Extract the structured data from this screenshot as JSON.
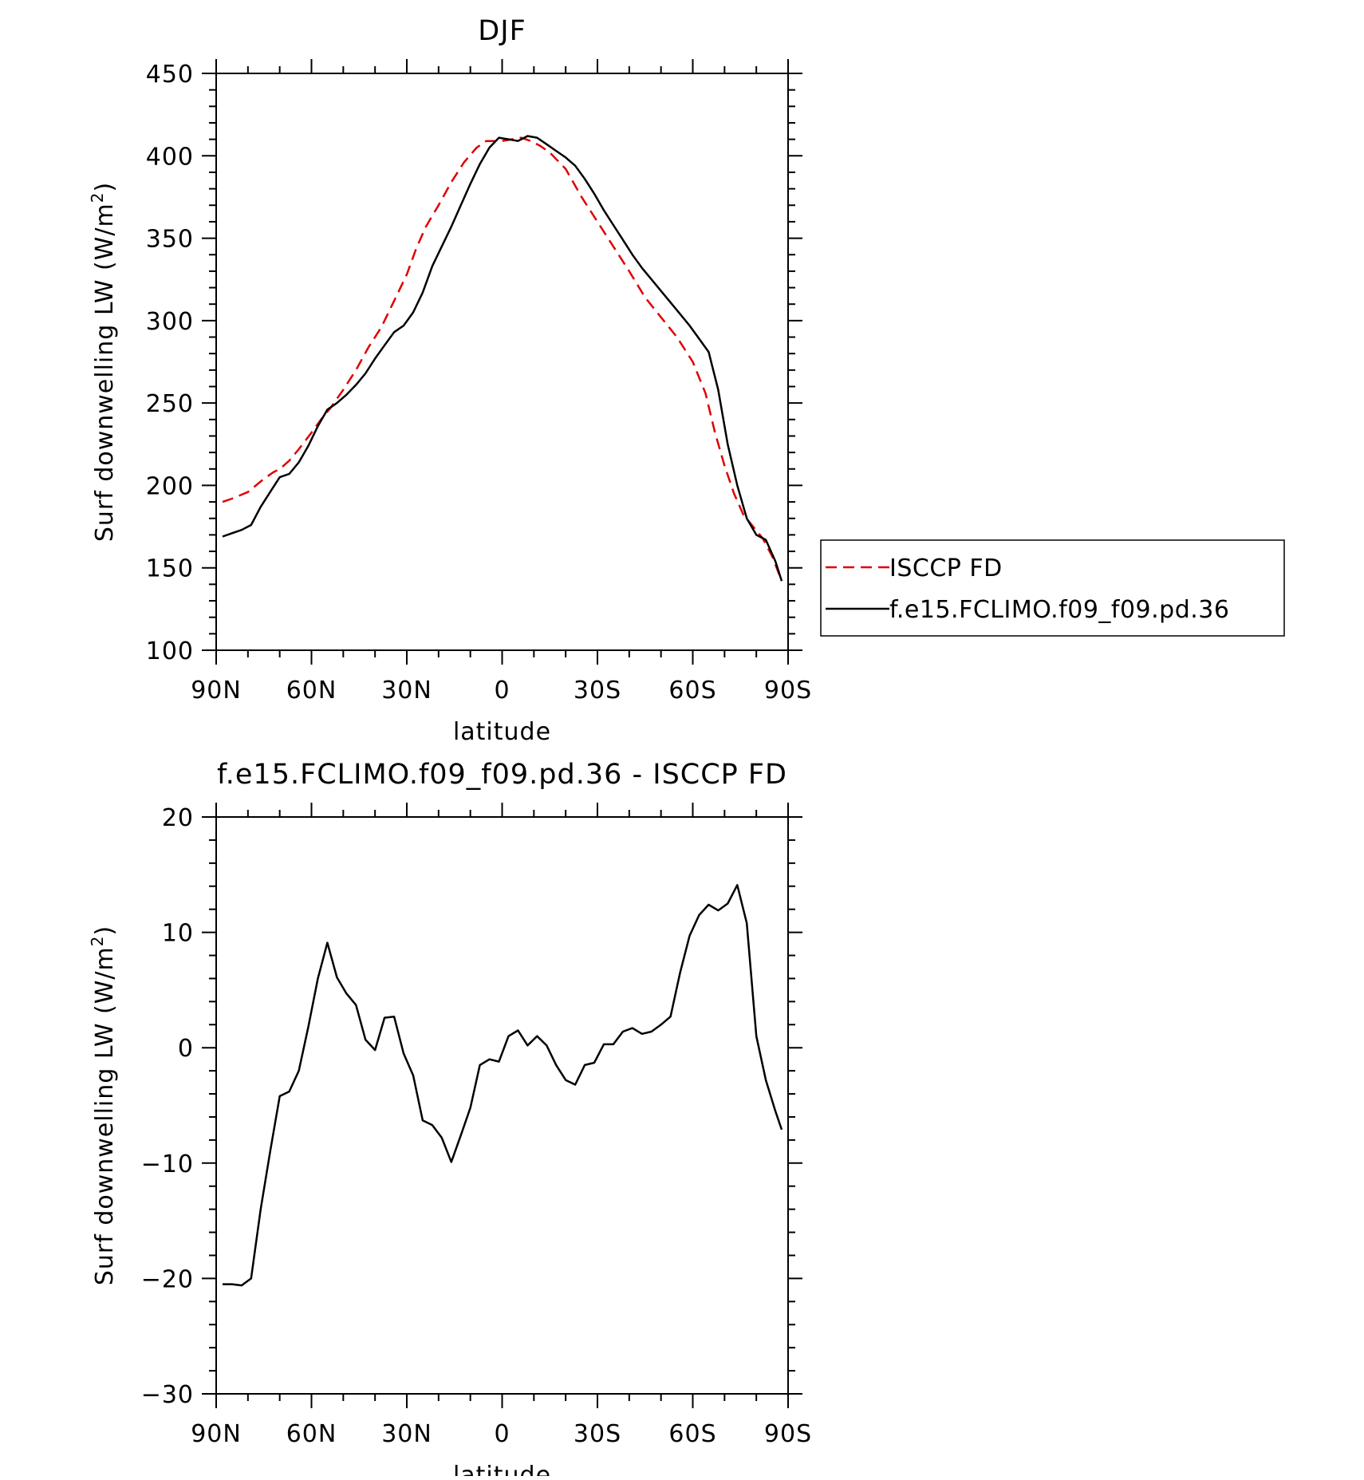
{
  "chart_data": [
    {
      "type": "line",
      "title": "DJF",
      "xlabel": "latitude",
      "ylabel": "Surf downwelling LW (W/m",
      "ylabel_sup": "2",
      "ylabel_end": ")",
      "ylim": [
        100,
        450
      ],
      "yticks": [
        100,
        150,
        200,
        250,
        300,
        350,
        400,
        450
      ],
      "xlim": [
        -90,
        90
      ],
      "xticks": [
        -90,
        -60,
        -30,
        0,
        30,
        60,
        90
      ],
      "xticklabels": [
        "90N",
        "60N",
        "30N",
        "0",
        "30S",
        "60S",
        "90S"
      ],
      "legend": "right",
      "series": [
        {
          "name": "ISCCP FD",
          "color": "#e00000",
          "dash": true,
          "x": [
            -88,
            -85,
            -80,
            -75,
            -72,
            -70,
            -67,
            -64,
            -60,
            -57,
            -54,
            -50,
            -46,
            -42,
            -38,
            -34,
            -30,
            -27,
            -24,
            -20,
            -16,
            -12,
            -8,
            -5,
            -2,
            0,
            3,
            6,
            9,
            12,
            15,
            20,
            25,
            30,
            35,
            40,
            45,
            50,
            55,
            60,
            64,
            67,
            70,
            73,
            76,
            79,
            82,
            85,
            88
          ],
          "y": [
            190,
            192,
            196,
            204,
            208,
            210,
            215,
            222,
            232,
            240,
            247,
            258,
            270,
            284,
            296,
            312,
            328,
            344,
            357,
            370,
            384,
            396,
            405,
            409,
            409,
            409,
            410,
            411,
            409,
            406,
            402,
            392,
            375,
            360,
            345,
            330,
            314,
            302,
            290,
            275,
            256,
            232,
            212,
            195,
            182,
            175,
            168,
            157,
            142
          ]
        },
        {
          "name": "f.e15.FCLIMO.f09_f09.pd.36",
          "color": "#000000",
          "dash": false,
          "x": [
            -88,
            -85,
            -82,
            -79,
            -76,
            -73,
            -70,
            -67,
            -64,
            -61,
            -58,
            -55,
            -52,
            -49,
            -46,
            -43,
            -40,
            -37,
            -34,
            -31,
            -28,
            -25,
            -22,
            -19,
            -16,
            -13,
            -10,
            -7,
            -4,
            -1,
            2,
            5,
            8,
            11,
            14,
            17,
            20,
            23,
            26,
            29,
            32,
            35,
            38,
            41,
            44,
            47,
            50,
            53,
            56,
            59,
            62,
            65,
            68,
            71,
            74,
            77,
            80,
            83,
            86,
            88
          ],
          "y": [
            169,
            171,
            173,
            176,
            187,
            196,
            205,
            207,
            214,
            224,
            236,
            246,
            250,
            255,
            261,
            268,
            277,
            285,
            293,
            297,
            305,
            317,
            333,
            345,
            357,
            370,
            383,
            395,
            405,
            411,
            410,
            409,
            412,
            411,
            407,
            403,
            399,
            394,
            386,
            377,
            367,
            358,
            349,
            340,
            332,
            325,
            318,
            311,
            304,
            297,
            289,
            281,
            258,
            225,
            200,
            180,
            170,
            167,
            154,
            142
          ]
        }
      ]
    },
    {
      "type": "line",
      "title": "f.e15.FCLIMO.f09_f09.pd.36 - ISCCP FD",
      "xlabel": "latitude",
      "ylabel": "Surf downwelling LW (W/m",
      "ylabel_sup": "2",
      "ylabel_end": ")",
      "ylim": [
        -30,
        20
      ],
      "yticks": [
        -30,
        -20,
        -10,
        0,
        10,
        20
      ],
      "yticklabels": [
        "−30",
        "−20",
        "−10",
        "0",
        "10",
        "20"
      ],
      "xlim": [
        -90,
        90
      ],
      "xticks": [
        -90,
        -60,
        -30,
        0,
        30,
        60,
        90
      ],
      "xticklabels": [
        "90N",
        "60N",
        "30N",
        "0",
        "30S",
        "60S",
        "90S"
      ],
      "series": [
        {
          "color": "#000000",
          "x": [
            -88,
            -85,
            -82,
            -79,
            -76,
            -73,
            -70,
            -67,
            -64,
            -61,
            -58,
            -55,
            -52,
            -49,
            -46,
            -43,
            -40,
            -37,
            -34,
            -31,
            -28,
            -25,
            -22,
            -19,
            -16,
            -13,
            -10,
            -7,
            -4,
            -1,
            2,
            5,
            8,
            11,
            14,
            17,
            20,
            23,
            26,
            29,
            32,
            35,
            38,
            41,
            44,
            47,
            50,
            53,
            56,
            59,
            62,
            65,
            68,
            71,
            74,
            77,
            80,
            83,
            86,
            88
          ],
          "y": [
            -20.5,
            -20.5,
            -20.6,
            -20.0,
            -14.0,
            -9.0,
            -4.2,
            -3.8,
            -2.0,
            1.8,
            6.0,
            9.1,
            6.1,
            4.7,
            3.7,
            0.7,
            -0.2,
            2.6,
            2.7,
            -0.5,
            -2.4,
            -6.3,
            -6.7,
            -7.8,
            -9.9,
            -7.6,
            -5.2,
            -1.5,
            -1.0,
            -1.2,
            1.0,
            1.5,
            0.2,
            1.0,
            0.2,
            -1.5,
            -2.8,
            -3.2,
            -1.5,
            -1.3,
            0.3,
            0.3,
            1.4,
            1.7,
            1.2,
            1.4,
            2.0,
            2.7,
            6.5,
            9.7,
            11.5,
            12.4,
            11.9,
            12.5,
            14.1,
            10.8,
            1.0,
            -2.8,
            -5.5,
            -7.1
          ]
        }
      ]
    }
  ]
}
